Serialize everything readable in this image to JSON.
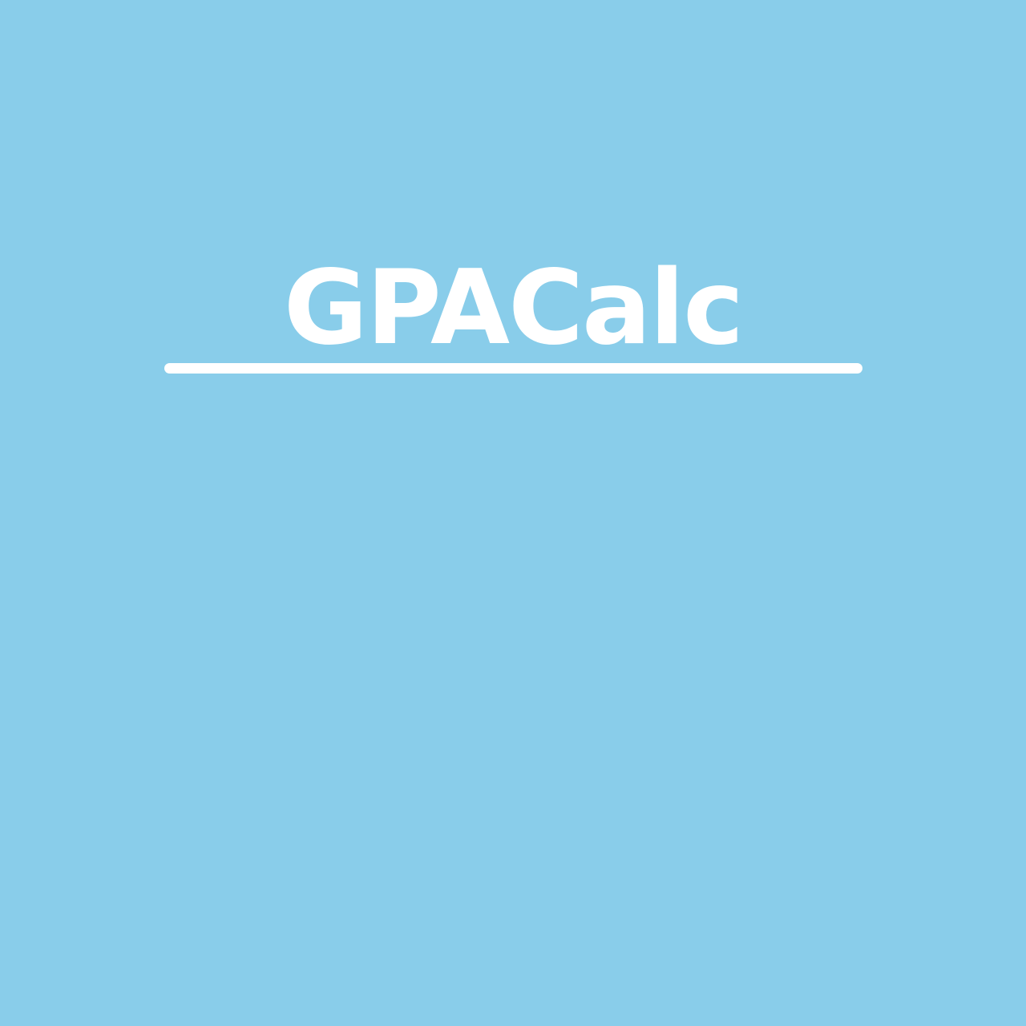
{
  "app": {
    "title": "GPACalc"
  },
  "colors": {
    "background": "#89CDEA",
    "foreground": "#FFFFFF"
  }
}
